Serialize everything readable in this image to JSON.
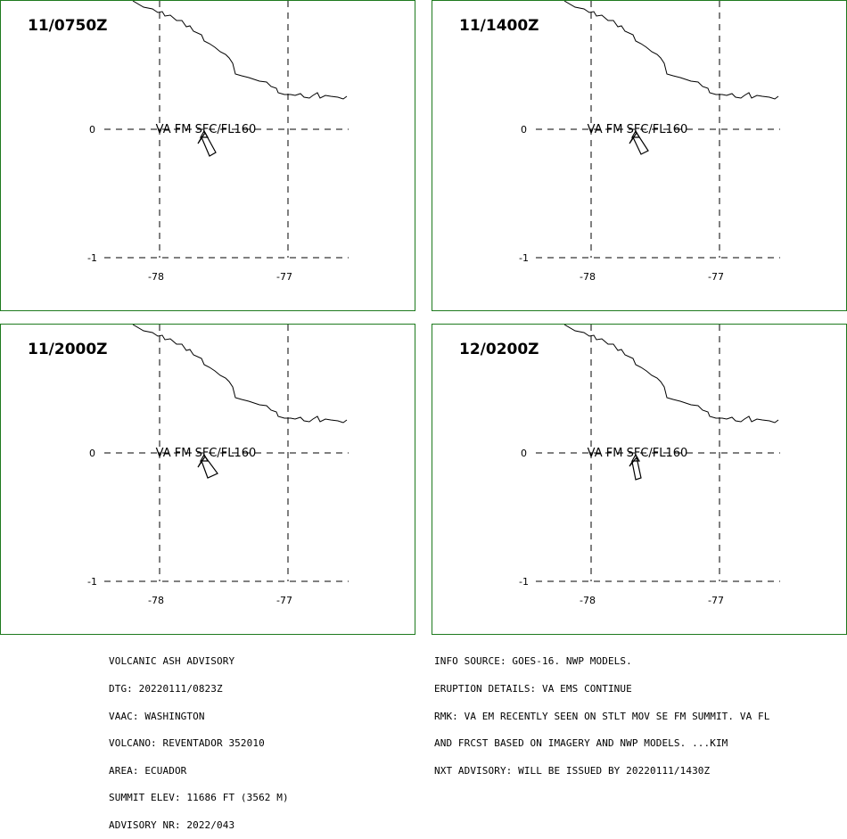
{
  "panels": [
    {
      "time": "11/0750Z",
      "label": "VA FM SFC/FL160"
    },
    {
      "time": "11/1400Z",
      "label": "VA FM SFC/FL160"
    },
    {
      "time": "11/2000Z",
      "label": "VA FM SFC/FL160"
    },
    {
      "time": "12/0200Z",
      "label": "VA FM SFC/FL160"
    }
  ],
  "axes": {
    "lat_ticks": [
      "0",
      "-1"
    ],
    "lon_ticks": [
      "-78",
      "-77"
    ]
  },
  "advisory_left": [
    "VOLCANIC ASH ADVISORY",
    "DTG: 20220111/0823Z",
    "VAAC: WASHINGTON",
    "VOLCANO: REVENTADOR 352010",
    "AREA: ECUADOR",
    "SUMMIT ELEV: 11686 FT (3562 M)",
    "ADVISORY NR: 2022/043"
  ],
  "advisory_right": [
    "INFO SOURCE: GOES-16. NWP MODELS.",
    "ERUPTION DETAILS: VA EMS CONTINUE",
    "RMK: VA EM RECENTLY SEEN ON STLT MOV SE FM SUMMIT. VA FL",
    "AND FRCST BASED ON IMAGERY AND NWP MODELS. ...KIM",
    "NXT ADVISORY: WILL BE ISSUED BY 20220111/1430Z"
  ]
}
